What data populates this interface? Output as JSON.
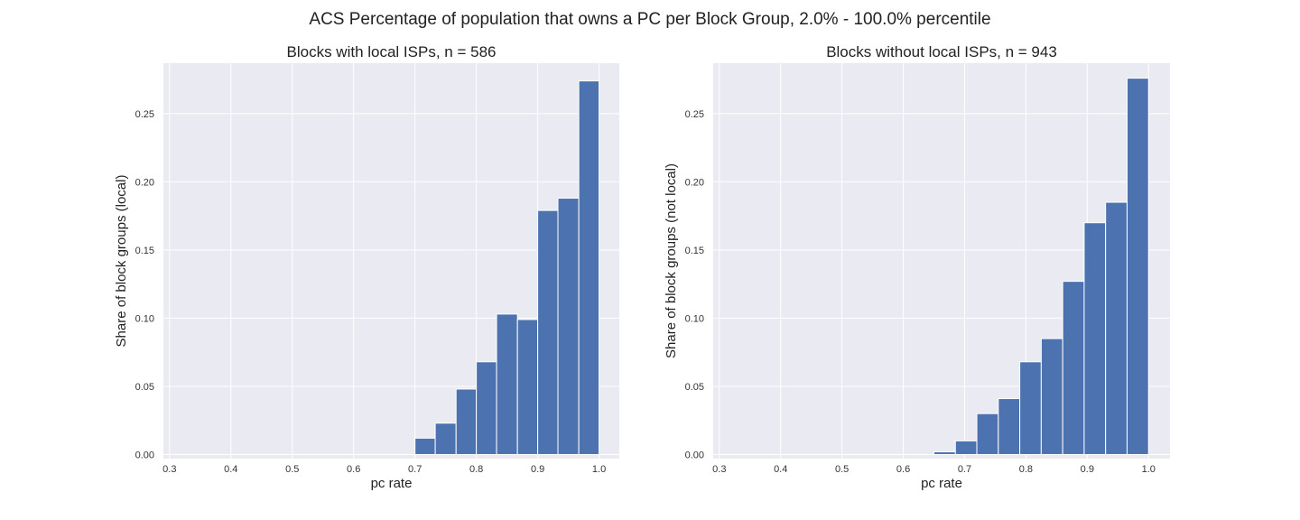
{
  "figure": {
    "title": "ACS Percentage of population that owns a PC per Block Group, 2.0% - 100.0% percentile",
    "background": "#ffffff",
    "axes_background": "#eaeaf2",
    "grid_color": "#ffffff",
    "bar_color": "#4c72b0"
  },
  "chart_data": [
    {
      "type": "bar",
      "title": "Blocks with local ISPs, n = 586",
      "xlabel": "pc rate",
      "ylabel": "Share of block groups (local)",
      "xlim": [
        0.29,
        1.033
      ],
      "ylim": [
        -0.003,
        0.287
      ],
      "xticks": [
        "0.3",
        "0.4",
        "0.5",
        "0.6",
        "0.7",
        "0.8",
        "0.9",
        "1.0"
      ],
      "yticks": [
        "0.00",
        "0.05",
        "0.10",
        "0.15",
        "0.20",
        "0.25"
      ],
      "grid": true,
      "bins": [
        {
          "x0": 0.7,
          "x1": 0.733,
          "value": 0.012
        },
        {
          "x0": 0.733,
          "x1": 0.767,
          "value": 0.023
        },
        {
          "x0": 0.767,
          "x1": 0.8,
          "value": 0.048
        },
        {
          "x0": 0.8,
          "x1": 0.833,
          "value": 0.068
        },
        {
          "x0": 0.833,
          "x1": 0.867,
          "value": 0.103
        },
        {
          "x0": 0.867,
          "x1": 0.9,
          "value": 0.099
        },
        {
          "x0": 0.9,
          "x1": 0.933,
          "value": 0.179
        },
        {
          "x0": 0.933,
          "x1": 0.967,
          "value": 0.188
        },
        {
          "x0": 0.967,
          "x1": 1.0,
          "value": 0.274
        }
      ]
    },
    {
      "type": "bar",
      "title": "Blocks without local ISPs, n = 943",
      "xlabel": "pc rate",
      "ylabel": "Share of block groups (not local)",
      "xlim": [
        0.29,
        1.035
      ],
      "ylim": [
        -0.003,
        0.287
      ],
      "xticks": [
        "0.3",
        "0.4",
        "0.5",
        "0.6",
        "0.7",
        "0.8",
        "0.9",
        "1.0"
      ],
      "yticks": [
        "0.00",
        "0.05",
        "0.10",
        "0.15",
        "0.20",
        "0.25"
      ],
      "grid": true,
      "bins": [
        {
          "x0": 0.65,
          "x1": 0.685,
          "value": 0.002
        },
        {
          "x0": 0.685,
          "x1": 0.72,
          "value": 0.01
        },
        {
          "x0": 0.72,
          "x1": 0.755,
          "value": 0.03
        },
        {
          "x0": 0.755,
          "x1": 0.79,
          "value": 0.041
        },
        {
          "x0": 0.79,
          "x1": 0.825,
          "value": 0.068
        },
        {
          "x0": 0.825,
          "x1": 0.86,
          "value": 0.085
        },
        {
          "x0": 0.86,
          "x1": 0.895,
          "value": 0.127
        },
        {
          "x0": 0.895,
          "x1": 0.93,
          "value": 0.17
        },
        {
          "x0": 0.93,
          "x1": 0.965,
          "value": 0.185
        },
        {
          "x0": 0.965,
          "x1": 1.0,
          "value": 0.276
        }
      ]
    }
  ]
}
